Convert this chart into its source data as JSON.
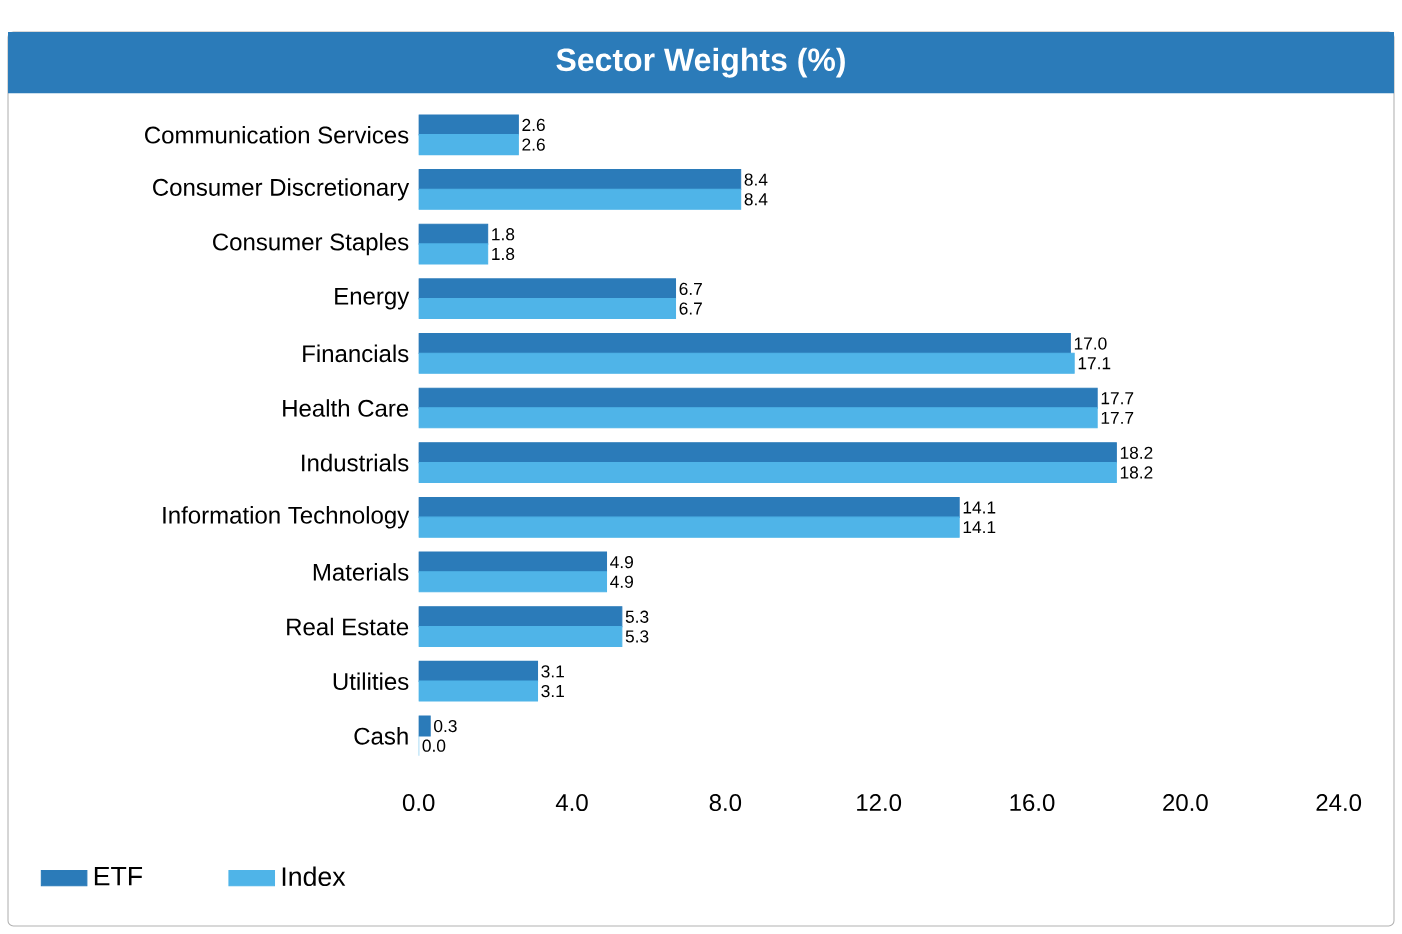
{
  "chart_data": {
    "type": "bar",
    "orientation": "horizontal",
    "title": "Sector Weights (%)",
    "categories": [
      "Communication Services",
      "Consumer Discretionary",
      "Consumer Staples",
      "Energy",
      "Financials",
      "Health Care",
      "Industrials",
      "Information Technology",
      "Materials",
      "Real Estate",
      "Utilities",
      "Cash"
    ],
    "series": [
      {
        "name": "ETF",
        "color": "#2b7bb9",
        "values": [
          2.6,
          8.4,
          1.8,
          6.7,
          17.0,
          17.7,
          18.2,
          14.1,
          4.9,
          5.3,
          3.1,
          0.3
        ],
        "value_labels": [
          "2.6",
          "8.4",
          "1.8",
          "6.7",
          "17.0",
          "17.7",
          "18.2",
          "14.1",
          "4.9",
          "5.3",
          "3.1",
          "0.3"
        ]
      },
      {
        "name": "Index",
        "color": "#4fb4e8",
        "values": [
          2.6,
          8.4,
          1.8,
          6.7,
          17.1,
          17.7,
          18.2,
          14.1,
          4.9,
          5.3,
          3.1,
          0.0
        ],
        "value_labels": [
          "2.6",
          "8.4",
          "1.8",
          "6.7",
          "17.1",
          "17.7",
          "18.2",
          "14.1",
          "4.9",
          "5.3",
          "3.1",
          "0.0"
        ]
      }
    ],
    "xlim": [
      0,
      24
    ],
    "xticks": [
      {
        "value": 0,
        "label": "0.0"
      },
      {
        "value": 4,
        "label": "4.0"
      },
      {
        "value": 8,
        "label": "8.0"
      },
      {
        "value": 12,
        "label": "12.0"
      },
      {
        "value": 16,
        "label": "16.0"
      },
      {
        "value": 20,
        "label": "20.0"
      },
      {
        "value": 24,
        "label": "24.0"
      }
    ],
    "grid": false,
    "legend": "bottom"
  }
}
